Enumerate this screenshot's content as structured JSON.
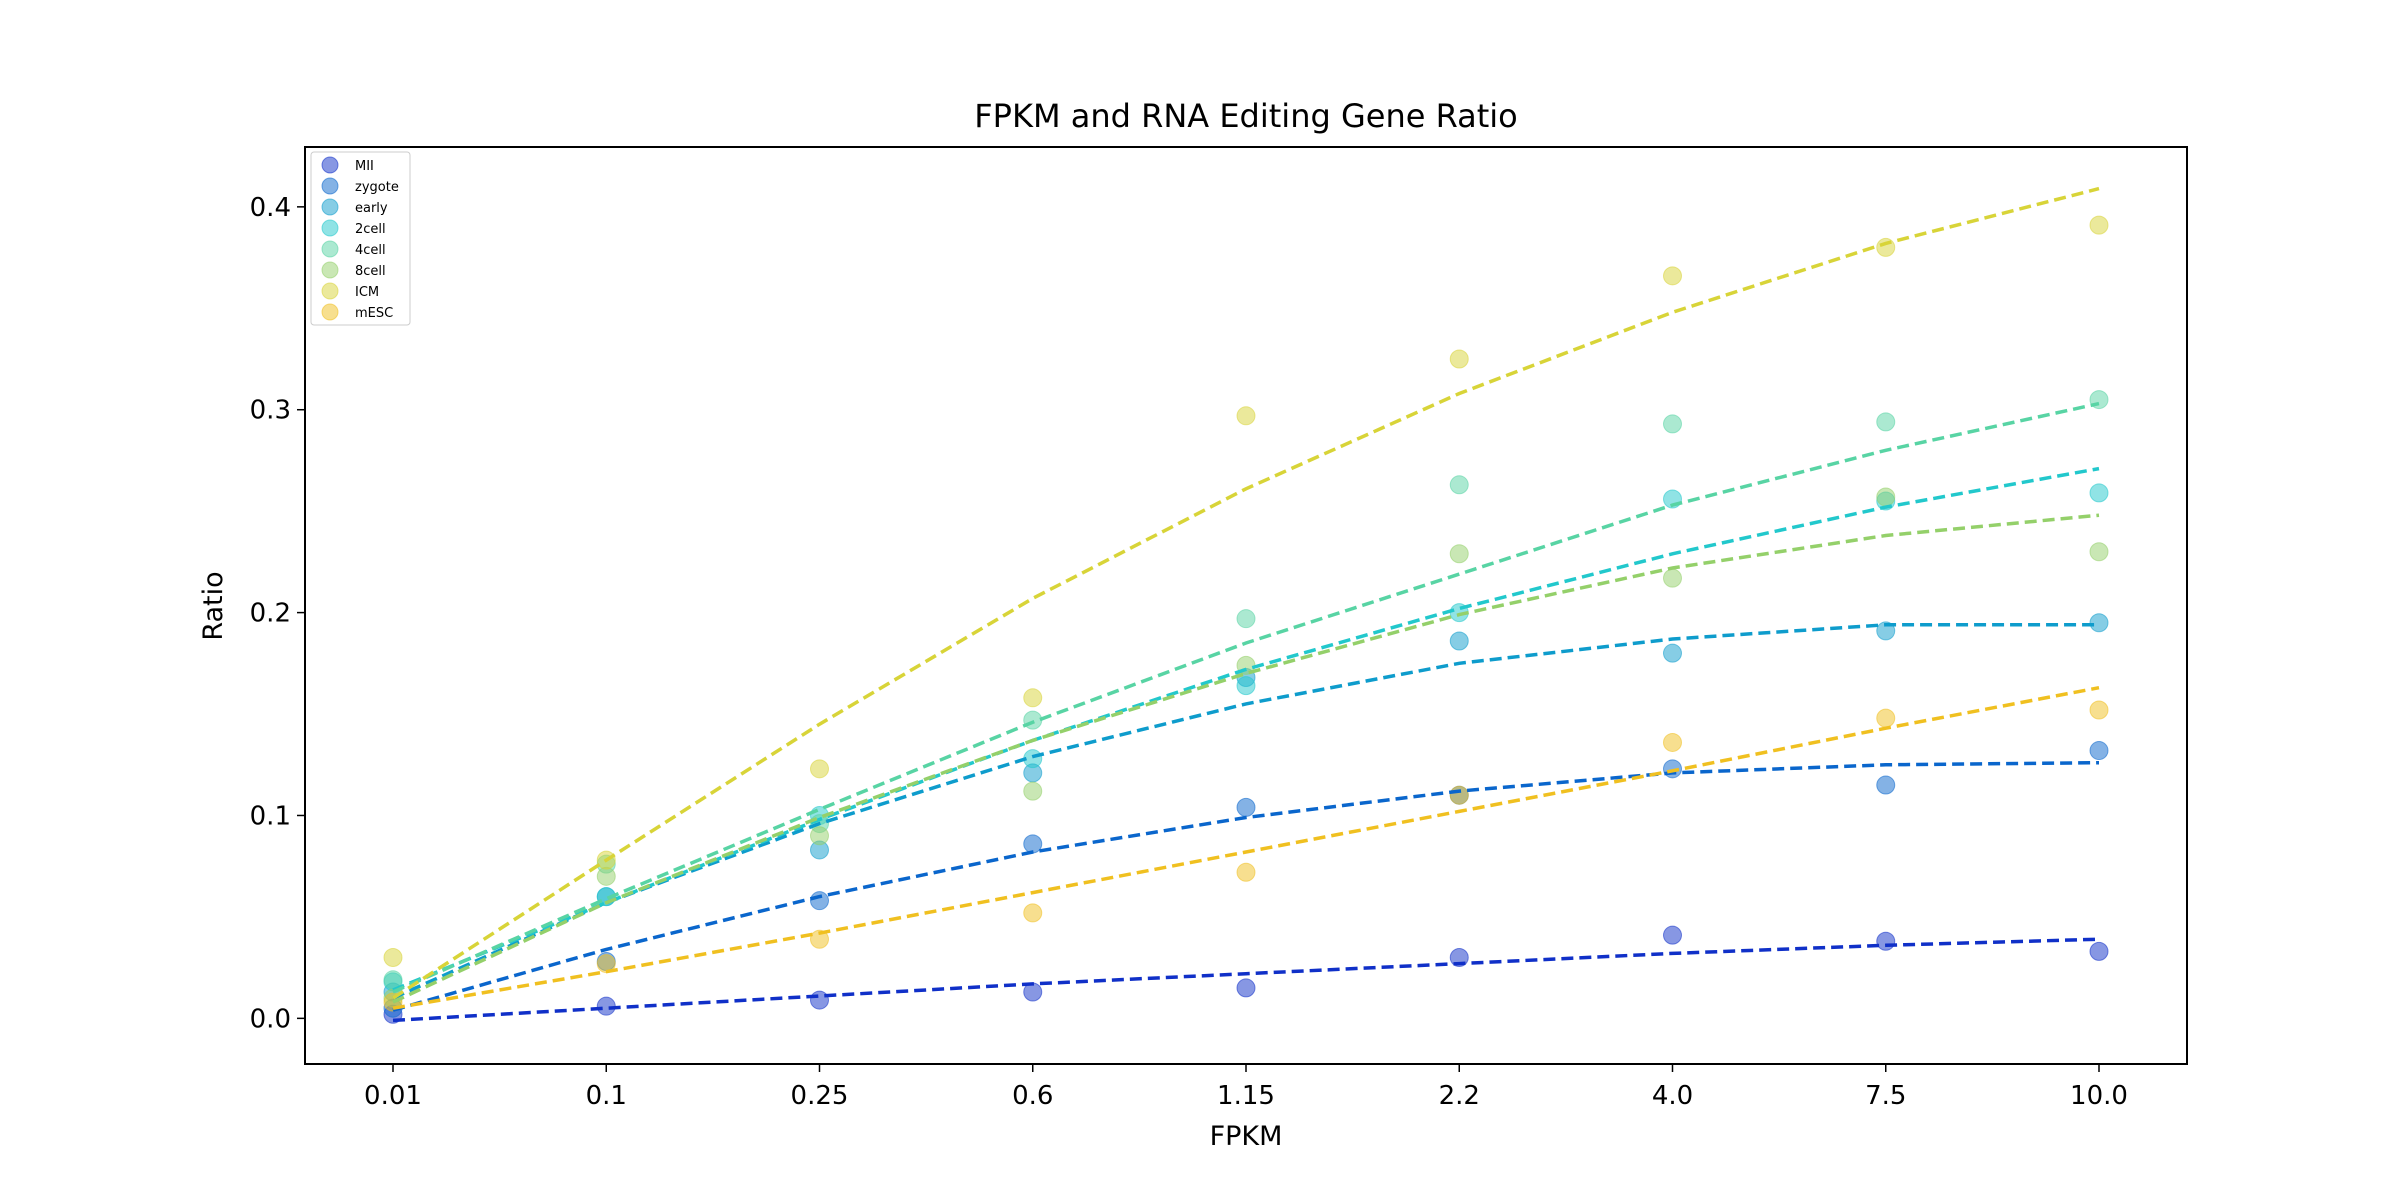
{
  "chart_data": {
    "type": "scatter",
    "title": "FPKM and RNA Editing Gene Ratio",
    "xlabel": "FPKM",
    "ylabel": "Ratio",
    "categories": [
      "0.01",
      "0.1",
      "0.25",
      "0.6",
      "1.15",
      "2.2",
      "4.0",
      "7.5",
      "10.0"
    ],
    "ylim": [
      -0.0225,
      0.4295
    ],
    "yticks": [
      "0.0",
      "0.1",
      "0.2",
      "0.3",
      "0.4"
    ],
    "ytick_values": [
      0,
      0.1,
      0.2,
      0.3,
      0.4
    ],
    "legend_position": "upper-left",
    "grid": false,
    "fit_lines": "dashed",
    "series": [
      {
        "name": "MII",
        "color": "#1030c8",
        "points": [
          0.002,
          0.006,
          0.009,
          0.013,
          0.015,
          0.03,
          0.041,
          0.038,
          0.033
        ],
        "fit": [
          -0.001,
          0.005,
          0.011,
          0.017,
          0.022,
          0.027,
          0.032,
          0.036,
          0.039
        ]
      },
      {
        "name": "zygote",
        "color": "#0a66cc",
        "points": [
          0.005,
          0.028,
          0.058,
          0.086,
          0.104,
          0.11,
          0.123,
          0.115,
          0.132
        ],
        "fit": [
          0.004,
          0.034,
          0.06,
          0.082,
          0.099,
          0.112,
          0.121,
          0.125,
          0.126
        ]
      },
      {
        "name": "early",
        "color": "#0e9ccc",
        "points": [
          0.013,
          0.06,
          0.083,
          0.121,
          0.168,
          0.186,
          0.18,
          0.191,
          0.195
        ],
        "fit": [
          0.01,
          0.057,
          0.096,
          0.129,
          0.155,
          0.175,
          0.187,
          0.194,
          0.194
        ]
      },
      {
        "name": "2cell",
        "color": "#22c8cc",
        "points": [
          0.018,
          0.06,
          0.1,
          0.128,
          0.164,
          0.2,
          0.256,
          0.255,
          0.259
        ],
        "fit": [
          0.014,
          0.057,
          0.098,
          0.137,
          0.172,
          0.202,
          0.229,
          0.252,
          0.271
        ]
      },
      {
        "name": "4cell",
        "color": "#58d4a4",
        "points": [
          0.019,
          0.076,
          0.096,
          0.147,
          0.197,
          0.263,
          0.293,
          0.294,
          0.305
        ],
        "fit": [
          0.013,
          0.059,
          0.103,
          0.146,
          0.185,
          0.219,
          0.253,
          0.28,
          0.303
        ]
      },
      {
        "name": "8cell",
        "color": "#94d06a",
        "points": [
          0.01,
          0.07,
          0.09,
          0.112,
          0.174,
          0.229,
          0.217,
          0.257,
          0.23
        ],
        "fit": [
          0.008,
          0.057,
          0.099,
          0.137,
          0.17,
          0.199,
          0.222,
          0.238,
          0.248
        ]
      },
      {
        "name": "ICM",
        "color": "#d8d438",
        "points": [
          0.03,
          0.078,
          0.123,
          0.158,
          0.297,
          0.325,
          0.366,
          0.38,
          0.391
        ],
        "fit": [
          0.01,
          0.078,
          0.145,
          0.207,
          0.261,
          0.308,
          0.348,
          0.382,
          0.409
        ]
      },
      {
        "name": "mESC",
        "color": "#f0c020",
        "points": [
          0.008,
          0.027,
          0.039,
          0.052,
          0.072,
          0.11,
          0.136,
          0.148,
          0.152
        ],
        "fit": [
          0.005,
          0.023,
          0.042,
          0.062,
          0.082,
          0.102,
          0.122,
          0.143,
          0.163
        ]
      }
    ]
  }
}
